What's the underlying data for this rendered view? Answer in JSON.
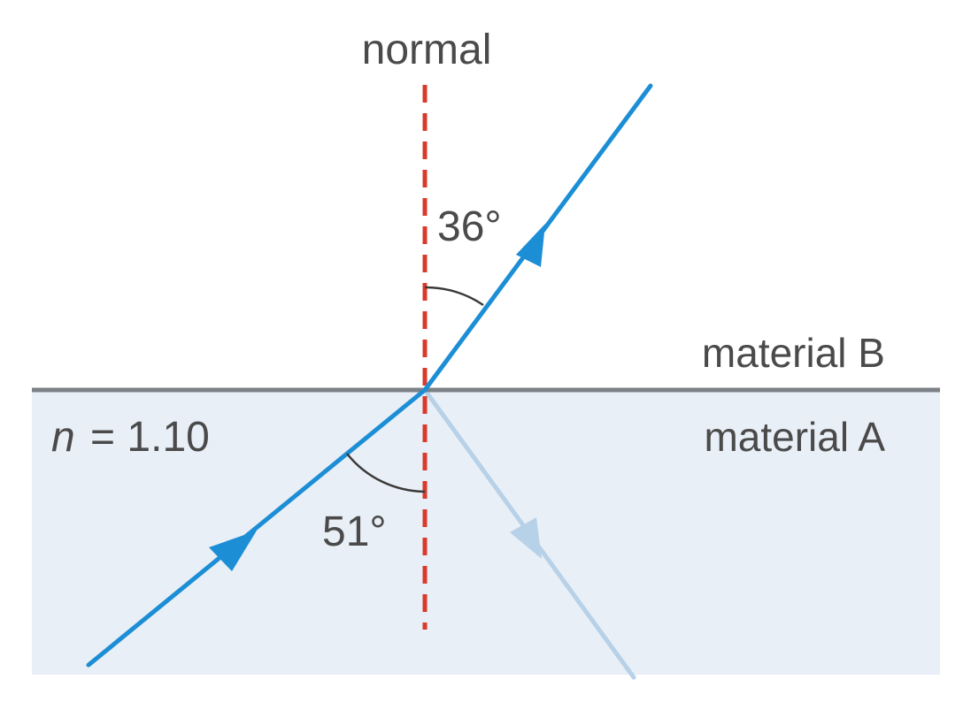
{
  "labels": {
    "normal": "normal",
    "refraction_angle": "36°",
    "incidence_angle": "51°",
    "material_top": "material B",
    "material_bottom": "material A",
    "index_symbol": "n",
    "index_value": "= 1.10"
  },
  "colors": {
    "ray": "#1c8ed6",
    "reflected_ray": "#b7d1e8",
    "normal_line": "#d93a2b",
    "boundary": "#7b8187",
    "material_a_fill": "#e9eff7",
    "angle_arc": "#3a3a3a",
    "text": "#4a4a4a"
  }
}
